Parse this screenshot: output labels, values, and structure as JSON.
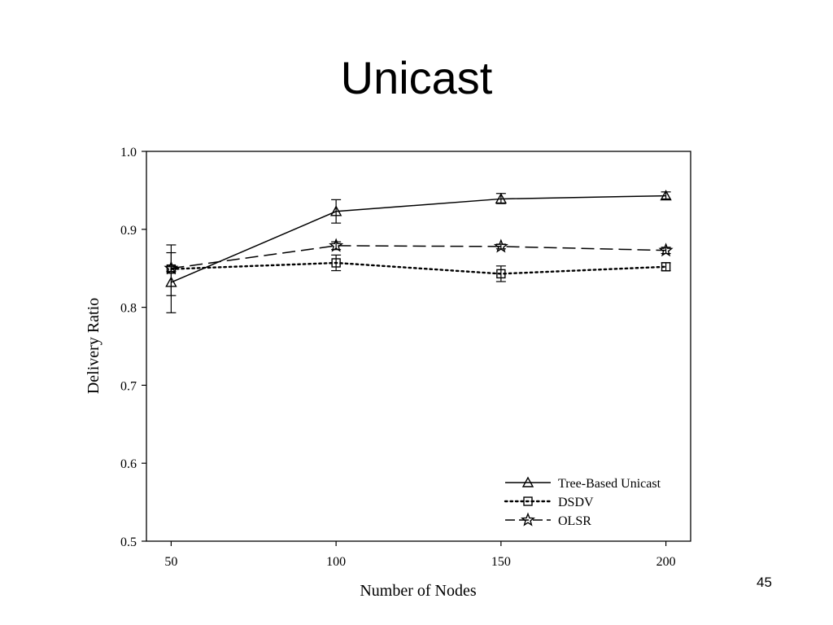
{
  "slide": {
    "title": "Unicast",
    "page_number": "45"
  },
  "chart_data": {
    "type": "line",
    "xlabel": "Number of Nodes",
    "ylabel": "Delivery Ratio",
    "x": [
      50,
      100,
      150,
      200
    ],
    "x_tick_labels": [
      "50",
      "100",
      "150",
      "200"
    ],
    "xlim": [
      42.5,
      207.5
    ],
    "ylim": [
      0.5,
      1.0
    ],
    "y_ticks": [
      0.5,
      0.6,
      0.7,
      0.8,
      0.9,
      1.0
    ],
    "y_tick_labels": [
      "0.5",
      "0.6",
      "0.7",
      "0.8",
      "0.9",
      "1.0"
    ],
    "grid": false,
    "legend_position": "bottom-right",
    "series": [
      {
        "name": "Tree-Based Unicast",
        "marker": "triangle",
        "line_style": "solid",
        "values": [
          0.832,
          0.923,
          0.939,
          0.943
        ],
        "error_low": [
          0.793,
          0.908,
          0.933,
          0.939
        ],
        "error_high": [
          0.87,
          0.938,
          0.946,
          0.948
        ]
      },
      {
        "name": "DSDV",
        "marker": "square",
        "line_style": "dotted",
        "values": [
          0.849,
          0.857,
          0.843,
          0.852
        ],
        "error_low": [
          0.846,
          0.847,
          0.833,
          0.847
        ],
        "error_high": [
          0.852,
          0.867,
          0.853,
          0.857
        ]
      },
      {
        "name": "OLSR",
        "marker": "star",
        "line_style": "dashed",
        "values": [
          0.85,
          0.879,
          0.878,
          0.873
        ],
        "error_low": [
          0.815,
          0.874,
          0.875,
          0.869
        ],
        "error_high": [
          0.88,
          0.884,
          0.881,
          0.877
        ]
      }
    ]
  }
}
